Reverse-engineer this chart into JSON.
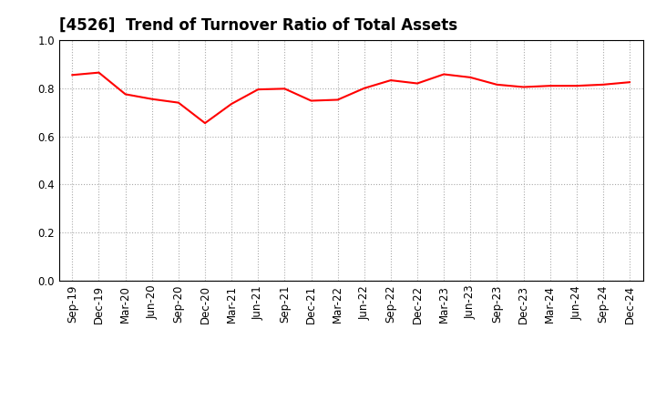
{
  "title": "[4526]  Trend of Turnover Ratio of Total Assets",
  "x_labels": [
    "Sep-19",
    "Dec-19",
    "Mar-20",
    "Jun-20",
    "Sep-20",
    "Dec-20",
    "Mar-21",
    "Jun-21",
    "Sep-21",
    "Dec-21",
    "Mar-22",
    "Jun-22",
    "Sep-22",
    "Dec-22",
    "Mar-23",
    "Jun-23",
    "Sep-23",
    "Dec-23",
    "Mar-24",
    "Jun-24",
    "Sep-24",
    "Dec-24"
  ],
  "y_values": [
    0.855,
    0.865,
    0.775,
    0.755,
    0.74,
    0.655,
    0.735,
    0.795,
    0.798,
    0.748,
    0.752,
    0.8,
    0.833,
    0.82,
    0.858,
    0.845,
    0.815,
    0.805,
    0.81,
    0.81,
    0.815,
    0.825
  ],
  "line_color": "#FF0000",
  "line_width": 1.5,
  "ylim": [
    0.0,
    1.0
  ],
  "yticks": [
    0.0,
    0.2,
    0.4,
    0.6,
    0.8,
    1.0
  ],
  "background_color": "#FFFFFF",
  "grid_color": "#AAAAAA",
  "title_fontsize": 12,
  "tick_fontsize": 8.5
}
